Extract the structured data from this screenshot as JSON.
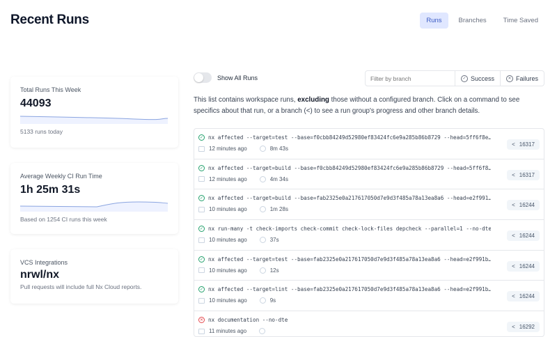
{
  "header": {
    "title": "Recent Runs",
    "tabs": [
      {
        "label": "Runs",
        "active": true
      },
      {
        "label": "Branches"
      },
      {
        "label": "Time Saved"
      }
    ]
  },
  "stats": [
    {
      "label": "Total Runs This Week",
      "value": "44093",
      "sub": "5133 runs today"
    },
    {
      "label": "Average Weekly CI Run Time",
      "value": "1h 25m 31s",
      "sub": "Based on 1254 CI runs this week"
    },
    {
      "label": "VCS Integrations",
      "value": "nrwl/nx",
      "sub": "Pull requests will include full Nx Cloud reports."
    }
  ],
  "controls": {
    "toggle_label": "Show All Runs",
    "toggle_on": false,
    "filter_placeholder": "Filter by branch",
    "success": "Success",
    "failures": "Failures"
  },
  "description": {
    "pre": "This list contains workspace runs, ",
    "bold": "excluding",
    "post": " those without a configured branch. Click on a command to see specifics about that run, or a branch (",
    "icon": "<",
    "post2": ") to see a run group's progress and other branch details."
  },
  "accent": "#3b5bc4",
  "runs": [
    {
      "status": "success",
      "command": "nx affected --target=test --base=f0cbb84249d52980ef83424fc6e9a285b86b8729 --head=5ff6f8e…",
      "time": "12 minutes ago",
      "duration": "8m 43s",
      "branch": "16317"
    },
    {
      "status": "success",
      "command": "nx affected --target=build --base=f0cbb84249d52980ef83424fc6e9a285b86b8729 --head=5ff6f8…",
      "time": "12 minutes ago",
      "duration": "4m 34s",
      "branch": "16317"
    },
    {
      "status": "success",
      "command": "nx affected --target=build --base=fab2325e0a217617050d7e9d3f485a78a13ea8a6 --head=e2f991…",
      "time": "10 minutes ago",
      "duration": "1m 28s",
      "branch": "16244"
    },
    {
      "status": "success",
      "command": "nx run-many -t check-imports check-commit check-lock-files depcheck --parallel=1 --no-dte",
      "time": "10 minutes ago",
      "duration": "37s",
      "branch": "16244"
    },
    {
      "status": "success",
      "command": "nx affected --target=test --base=fab2325e0a217617050d7e9d3f485a78a13ea8a6 --head=e2f991b…",
      "time": "10 minutes ago",
      "duration": "12s",
      "branch": "16244"
    },
    {
      "status": "success",
      "command": "nx affected --target=lint --base=fab2325e0a217617050d7e9d3f485a78a13ea8a6 --head=e2f991b…",
      "time": "10 minutes ago",
      "duration": "9s",
      "branch": "16244"
    },
    {
      "status": "failure",
      "command": "nx documentation --no-dte",
      "time": "11 minutes ago",
      "duration": "",
      "branch": "16292"
    }
  ]
}
